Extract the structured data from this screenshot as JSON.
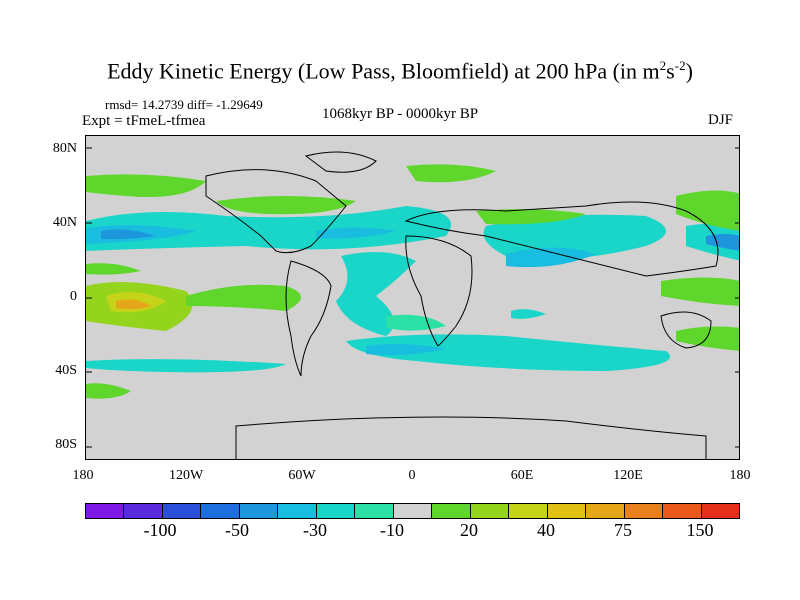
{
  "title": "Eddy Kinetic Energy (Low Pass, Bloomfield) at 200 hPa (in m",
  "title_sup1": "2",
  "title_mid": "s",
  "title_sup2": "-2",
  "title_end": ")",
  "stats": "rmsd= 14.2739 diff= -1.29649",
  "experiment": "Expt = tFmeL-tfmea",
  "period": "1068kyr BP - 0000kyr BP",
  "season": "DJF",
  "x_ticks": [
    "180",
    "120W",
    "60W",
    "0",
    "60E",
    "120E",
    "180"
  ],
  "y_ticks": [
    "80N",
    "40N",
    "0",
    "40S",
    "80S"
  ],
  "colorbar": {
    "colors": [
      "#7f1ae6",
      "#5a2cde",
      "#2a4fd8",
      "#1c6fdc",
      "#1e96dd",
      "#19bde0",
      "#1ad6c9",
      "#2be1a6",
      "#d2d2d2",
      "#5ed62c",
      "#95d41c",
      "#c5d418",
      "#e1c214",
      "#e6a61a",
      "#e8801e",
      "#ea5a1c",
      "#e4301a"
    ],
    "labels": [
      "-100",
      "-50",
      "-30",
      "-10",
      "20",
      "40",
      "75",
      "150"
    ]
  }
}
